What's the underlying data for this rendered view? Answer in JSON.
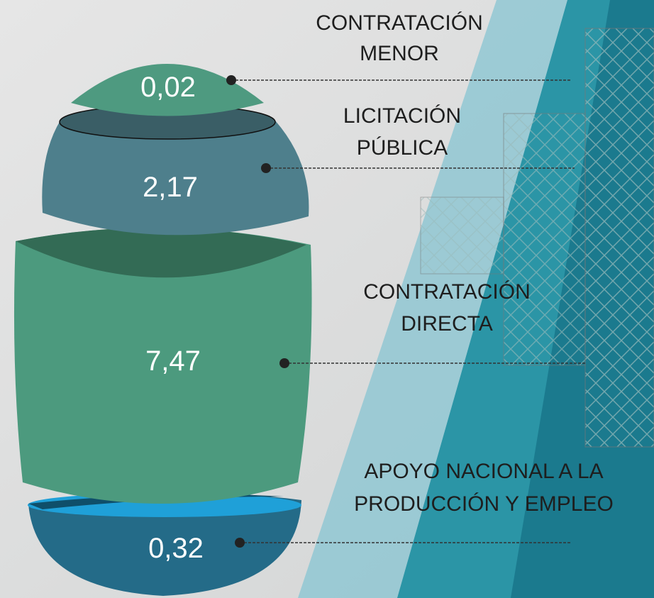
{
  "segments": [
    {
      "label_lines": [
        "CONTRATACIÓN",
        "MENOR"
      ],
      "value": "0,02"
    },
    {
      "label_lines": [
        "LICITACIÓN",
        "PÚBLICA"
      ],
      "value": "2,17"
    },
    {
      "label_lines": [
        "CONTRATACIÓN",
        "DIRECTA"
      ],
      "value": "7,47"
    },
    {
      "label_lines": [
        "APOYO NACIONAL A LA",
        "PRODUCCIÓN Y EMPLEO"
      ],
      "value": "0,32"
    }
  ]
}
